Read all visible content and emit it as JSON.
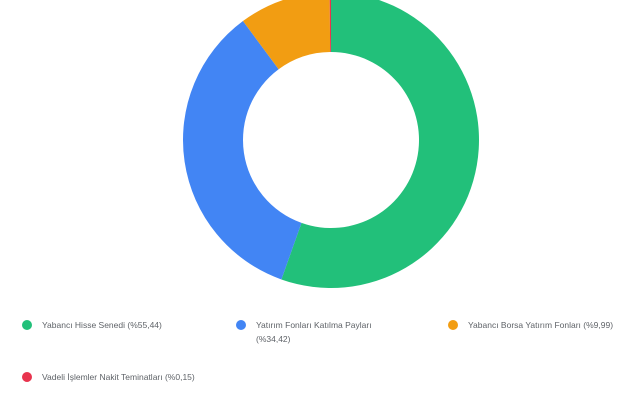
{
  "chart_data": {
    "type": "pie",
    "donut": true,
    "categories": [
      "Yabancı Hisse Senedi",
      "Yatırım Fonları Katılma Payları",
      "Yabancı Borsa Yatırım Fonları",
      "Vadeli İşlemler Nakit Teminatları"
    ],
    "values": [
      55.44,
      34.42,
      9.99,
      0.15
    ],
    "colors": [
      "#22c07a",
      "#4285f4",
      "#f29d12",
      "#e8344e"
    ],
    "legend_placement": "bottom"
  },
  "legend": {
    "items": [
      {
        "text": "Yabancı Hisse Senedi (%55,44)",
        "color": "#22c07a"
      },
      {
        "text": "Yatırım Fonları Katılma Payları (%34,42)",
        "color": "#4285f4"
      },
      {
        "text": "Yabancı Borsa Yatırım Fonları (%9,99)",
        "color": "#f29d12"
      },
      {
        "text": "Vadeli İşlemler Nakit Teminatları (%0,15)",
        "color": "#e8344e"
      }
    ]
  }
}
